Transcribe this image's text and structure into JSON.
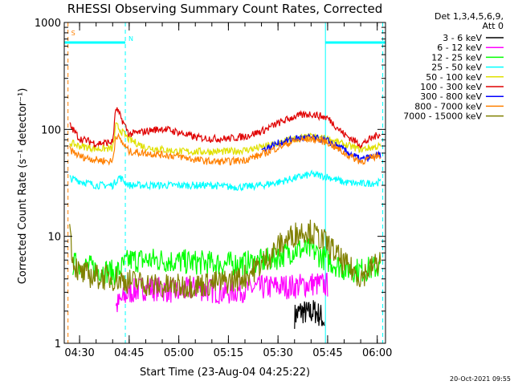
{
  "chart_data": {
    "type": "line",
    "title": "RHESSI Observing Summary Count Rates, Corrected",
    "xlabel": "Start Time (23-Aug-04 04:25:22)",
    "ylabel": "Corrected Count Rate (s⁻¹ detector⁻¹)",
    "y_scale": "log",
    "ylim": [
      1,
      1000
    ],
    "xlim": [
      "04:25:22",
      "06:02:30"
    ],
    "x_ticks": [
      "04:30",
      "04:45",
      "05:00",
      "05:15",
      "05:30",
      "05:45",
      "06:00"
    ],
    "y_ticks": [
      "1",
      "10",
      "100",
      "1000"
    ],
    "legend_header": [
      "Det 1,3,4,5,6,9,",
      "Att 0"
    ],
    "legend_position": "right",
    "footer": "20-Oct-2021 09:55",
    "markers": {
      "flag_s": {
        "label": "S",
        "time": "04:26:30",
        "color": "#ff8000"
      },
      "flag_n": {
        "label": "N",
        "time": "04:43:50",
        "color": "#00ffff"
      },
      "night_start": "04:43:50",
      "night_end": "05:44:20",
      "saa_bar_level": 650,
      "lines": [
        {
          "time": "04:26:30",
          "color": "#ff8000",
          "style": "dashed"
        },
        {
          "time": "04:43:50",
          "color": "#00ffff",
          "style": "dashed"
        },
        {
          "time": "05:44:20",
          "color": "#00ffff",
          "style": "solid"
        },
        {
          "time": "06:01:40",
          "color": "#00ffff",
          "style": "dashed"
        }
      ]
    },
    "series": [
      {
        "name": "3 - 6 keV",
        "color": "#000000",
        "x": [
          "05:35",
          "05:37",
          "05:39",
          "05:41",
          "05:43",
          "05:44"
        ],
        "values": [
          1.8,
          2.0,
          1.9,
          2.0,
          1.8,
          1.6
        ]
      },
      {
        "name": "6 - 12 keV",
        "color": "#ff00ff",
        "x": [
          "04:41",
          "04:45",
          "04:50",
          "04:55",
          "05:00",
          "05:05",
          "05:10",
          "05:15",
          "05:20",
          "05:25",
          "05:30",
          "05:35",
          "05:40",
          "05:45"
        ],
        "values": [
          2.2,
          3.0,
          3.3,
          3.2,
          3.0,
          3.3,
          3.1,
          3.0,
          3.2,
          3.3,
          3.4,
          3.4,
          3.6,
          3.5
        ]
      },
      {
        "name": "12 - 25 keV",
        "color": "#00ff00",
        "x": [
          "04:28",
          "04:35",
          "04:41",
          "04:45",
          "04:50",
          "04:55",
          "05:00",
          "05:05",
          "05:10",
          "05:15",
          "05:20",
          "05:25",
          "05:30",
          "05:35",
          "05:40",
          "05:45",
          "05:50",
          "05:55",
          "06:01"
        ],
        "values": [
          5.5,
          5.0,
          4.5,
          6.0,
          6.0,
          6.0,
          5.8,
          5.7,
          5.6,
          5.5,
          5.6,
          5.8,
          6.4,
          7.5,
          7.5,
          6.0,
          5.0,
          4.8,
          5.2
        ]
      },
      {
        "name": "25 - 50 keV",
        "color": "#00ffff",
        "x": [
          "04:27",
          "04:30",
          "04:35",
          "04:40",
          "04:42",
          "04:45",
          "04:50",
          "05:00",
          "05:10",
          "05:15",
          "05:20",
          "05:25",
          "05:30",
          "05:35",
          "05:40",
          "05:45",
          "05:50",
          "05:55",
          "06:01"
        ],
        "values": [
          35,
          33,
          30,
          30,
          36,
          30,
          30,
          30,
          30,
          29,
          29,
          30,
          32,
          35,
          38,
          36,
          32,
          31,
          32
        ]
      },
      {
        "name": "50 - 100 keV",
        "color": "#e0e000",
        "x": [
          "04:27",
          "04:30",
          "04:35",
          "04:40",
          "04:41",
          "04:45",
          "04:50",
          "05:00",
          "05:10",
          "05:15",
          "05:20",
          "05:25",
          "05:30",
          "05:35",
          "05:40",
          "05:45",
          "05:50",
          "05:55",
          "06:01"
        ],
        "values": [
          75,
          70,
          66,
          66,
          110,
          80,
          68,
          62,
          62,
          62,
          64,
          68,
          74,
          82,
          85,
          82,
          72,
          65,
          70
        ]
      },
      {
        "name": "100 - 300 keV",
        "color": "#e00000",
        "x": [
          "04:27",
          "04:30",
          "04:35",
          "04:40",
          "04:41",
          "04:45",
          "04:50",
          "04:55",
          "05:00",
          "05:05",
          "05:10",
          "05:15",
          "05:20",
          "05:25",
          "05:30",
          "05:35",
          "05:40",
          "05:45",
          "05:50",
          "05:55",
          "06:01"
        ],
        "values": [
          110,
          82,
          74,
          76,
          160,
          90,
          96,
          102,
          94,
          84,
          82,
          82,
          86,
          96,
          114,
          132,
          140,
          128,
          90,
          72,
          92
        ]
      },
      {
        "name": "300 - 800 keV",
        "color": "#0000ff",
        "x": [
          "05:25",
          "05:30",
          "05:35",
          "05:40",
          "05:45",
          "05:50",
          "05:55",
          "06:01"
        ],
        "values": [
          64,
          74,
          82,
          84,
          78,
          64,
          52,
          58
        ]
      },
      {
        "name": "800 - 7000 keV",
        "color": "#ff8000",
        "x": [
          "04:27",
          "04:30",
          "04:35",
          "04:40",
          "04:41",
          "04:45",
          "04:50",
          "04:55",
          "05:00",
          "05:05",
          "05:10",
          "05:15",
          "05:20",
          "05:25",
          "05:30",
          "05:35",
          "05:40",
          "05:45",
          "05:50",
          "05:55",
          "06:01"
        ],
        "values": [
          65,
          56,
          52,
          50,
          90,
          62,
          60,
          58,
          56,
          52,
          50,
          50,
          52,
          58,
          68,
          78,
          82,
          76,
          60,
          50,
          58
        ]
      },
      {
        "name": "7000 - 15000 keV",
        "color": "#808000",
        "x": [
          "04:27",
          "04:28",
          "04:30",
          "04:35",
          "04:41",
          "04:45",
          "04:50",
          "04:55",
          "05:00",
          "05:05",
          "05:10",
          "05:15",
          "05:20",
          "05:25",
          "05:30",
          "05:35",
          "05:38",
          "05:40",
          "05:45",
          "05:50",
          "05:55",
          "06:01"
        ],
        "values": [
          12,
          6.0,
          4.5,
          4.2,
          4.0,
          3.8,
          3.6,
          3.4,
          3.4,
          3.5,
          3.6,
          3.8,
          4.2,
          5.5,
          8.0,
          10.5,
          11.5,
          11.0,
          8.5,
          5.5,
          4.2,
          6.0
        ]
      }
    ]
  }
}
